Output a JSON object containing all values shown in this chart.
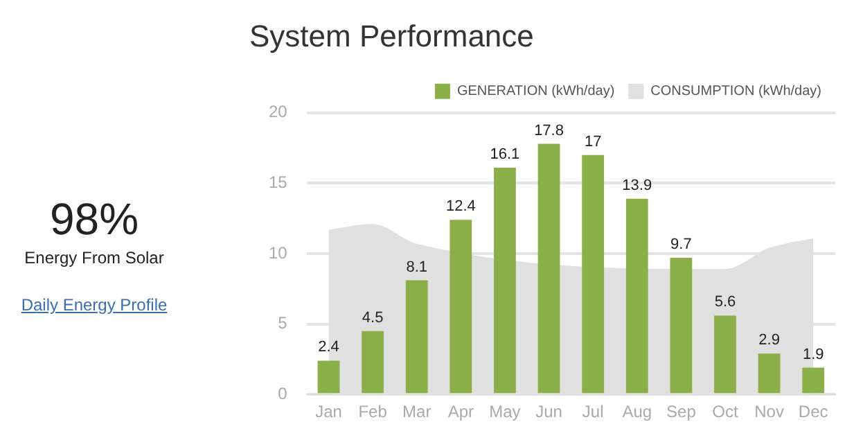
{
  "chart_data": {
    "type": "bar",
    "title": "System Performance",
    "categories": [
      "Jan",
      "Feb",
      "Mar",
      "Apr",
      "May",
      "Jun",
      "Jul",
      "Aug",
      "Sep",
      "Oct",
      "Nov",
      "Dec"
    ],
    "series": [
      {
        "name": "GENERATION (kWh/day)",
        "color": "#8bb04a",
        "values": [
          2.4,
          4.5,
          8.1,
          12.4,
          16.1,
          17.8,
          17,
          13.9,
          9.7,
          5.6,
          2.9,
          1.9
        ],
        "value_labels": [
          "2.4",
          "4.5",
          "8.1",
          "12.4",
          "16.1",
          "17.8",
          "17",
          "13.9",
          "9.7",
          "5.6",
          "2.9",
          "1.9"
        ]
      },
      {
        "name": "CONSUMPTION (kWh/day)",
        "type": "area",
        "color": "#e0e0e0",
        "values": [
          11.7,
          12.1,
          10.7,
          null,
          null,
          null,
          null,
          null,
          null,
          8.9,
          10.4,
          11.1
        ]
      }
    ],
    "ylim": [
      0,
      20
    ],
    "yticks": [
      0,
      5,
      10,
      15,
      20
    ],
    "grid": "y",
    "legend": "top",
    "annotations": [
      "98%",
      "Energy From Solar",
      "Daily Energy Profile"
    ]
  }
}
